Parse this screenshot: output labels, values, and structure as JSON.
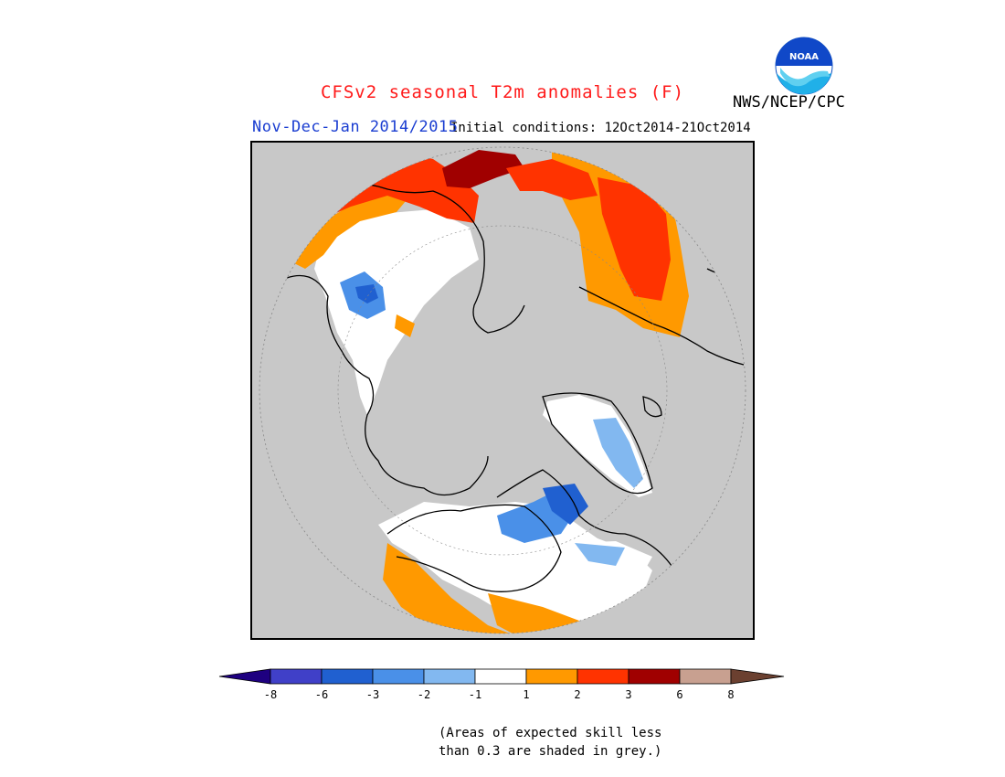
{
  "header": {
    "title": "CFSv2 seasonal T2m anomalies (F)",
    "title_color": "#ff1a1a",
    "period": "Nov-Dec-Jan 2014/2015",
    "period_color": "#1a3dd1",
    "initial_conditions": "Initial conditions: 12Oct2014-21Oct2014",
    "agency": "NWS/NCEP/CPC",
    "logo": {
      "icon": "noaa-logo-icon",
      "text": "NOAA"
    }
  },
  "map": {
    "projection": "north-polar-stereographic",
    "no_skill_color": "#c8c8c8",
    "background_color": "#c8c8c8"
  },
  "colorbar": {
    "ticks": [
      "-8",
      "-6",
      "-3",
      "-2",
      "-1",
      "1",
      "2",
      "3",
      "6",
      "8"
    ],
    "colors": [
      "#1e0080",
      "#4040c8",
      "#2060d0",
      "#4a90e8",
      "#82b8f0",
      "#ffffff",
      "#ff9900",
      "#ff3300",
      "#a00000",
      "#c8a090",
      "#6b4030"
    ]
  },
  "note": {
    "line1": "(Areas of expected skill less",
    "line2": "than 0.3 are shaded in grey.)"
  }
}
